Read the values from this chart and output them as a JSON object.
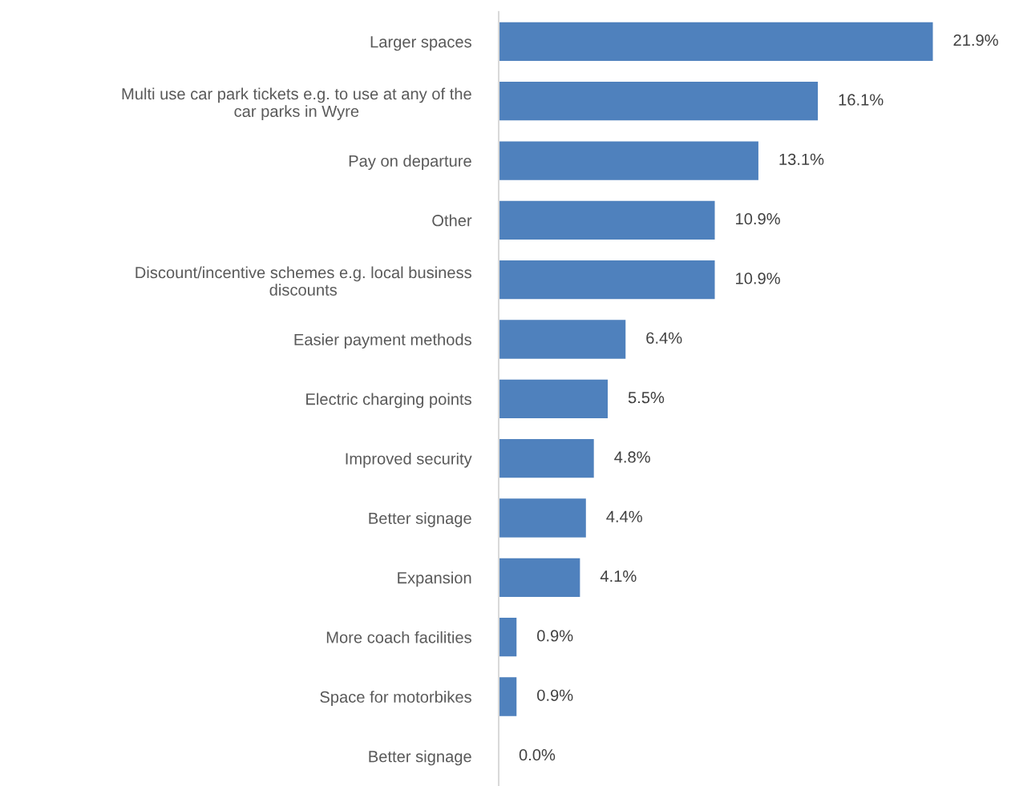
{
  "chart_data": {
    "type": "bar",
    "orientation": "horizontal",
    "categories": [
      "Larger spaces",
      "Multi use car park tickets e.g. to use at any of the\ncar parks in Wyre",
      "Pay on departure",
      "Other",
      "Discount/incentive schemes e.g. local business\ndiscounts",
      "Easier payment methods",
      "Electric charging points",
      "Improved security",
      "Better signage",
      "Expansion",
      "More coach facilities",
      "Space for motorbikes",
      "Better signage"
    ],
    "values": [
      21.9,
      16.1,
      13.1,
      10.9,
      10.9,
      6.4,
      5.5,
      4.8,
      4.4,
      4.1,
      0.9,
      0.9,
      0.0
    ],
    "value_labels": [
      "21.9%",
      "16.1%",
      "13.1%",
      "10.9%",
      "10.9%",
      "6.4%",
      "5.5%",
      "4.8%",
      "4.4%",
      "4.1%",
      "0.9%",
      "0.9%",
      "0.0%"
    ],
    "color": "#4f81bd",
    "grid": false,
    "legend": false
  }
}
